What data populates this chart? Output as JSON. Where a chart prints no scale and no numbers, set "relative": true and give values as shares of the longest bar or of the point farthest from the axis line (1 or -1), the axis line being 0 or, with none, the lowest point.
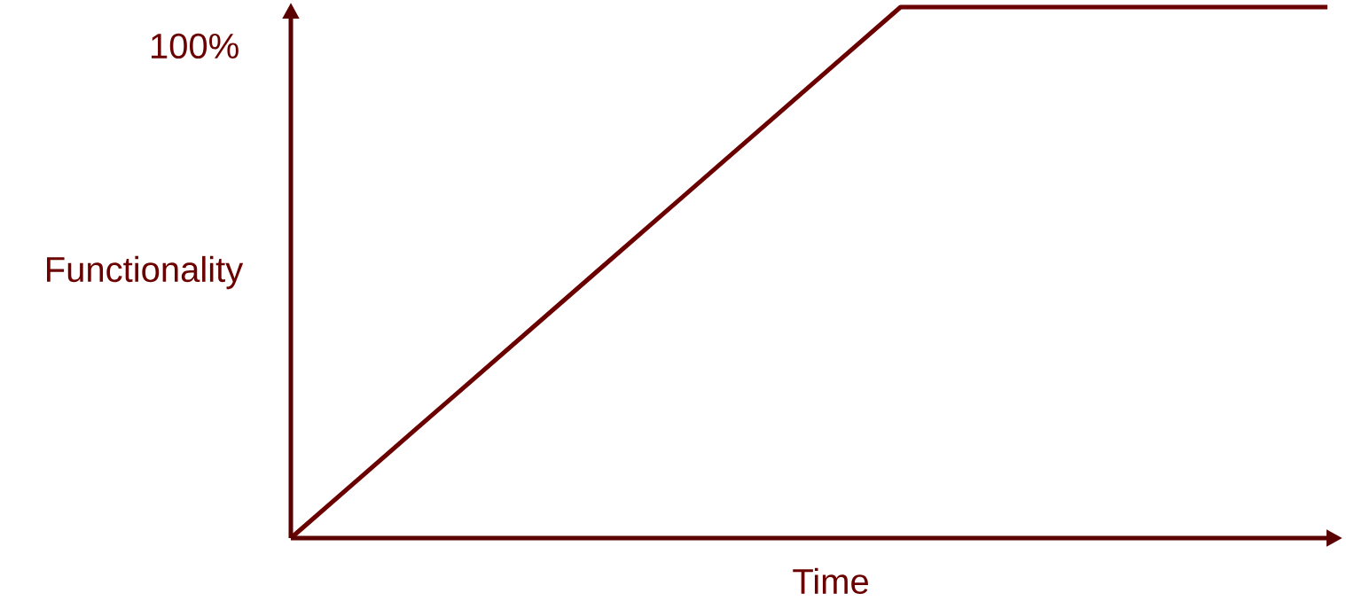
{
  "chart_data": {
    "type": "line",
    "relative": true,
    "xlabel": "Time",
    "ylabel": "Functionality",
    "color": "#6b0000",
    "categories": [
      null,
      null,
      null,
      null,
      null,
      null,
      null,
      null,
      null,
      null,
      null,
      null,
      null,
      null,
      null,
      null,
      null,
      null
    ],
    "values": [
      0,
      0.1,
      0.2,
      0.3,
      0.4,
      0.5,
      0.6,
      0.7,
      0.8,
      0.9,
      1,
      1,
      1,
      1,
      1,
      1,
      1,
      1
    ],
    "annotations": [
      "100%"
    ]
  }
}
